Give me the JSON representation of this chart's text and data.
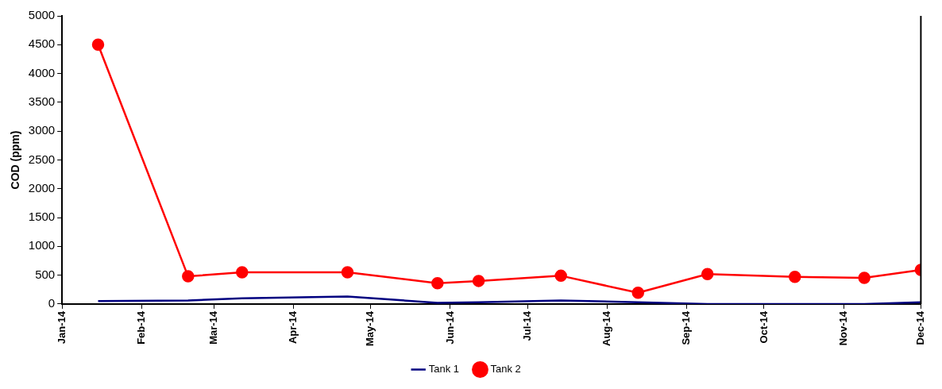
{
  "chart_data": {
    "type": "line",
    "ylabel": "COD (ppm)",
    "x": [
      "2014-01-15",
      "2014-02-19",
      "2014-03-12",
      "2014-04-22",
      "2014-05-27",
      "2014-06-12",
      "2014-07-14",
      "2014-08-13",
      "2014-09-09",
      "2014-10-13",
      "2014-11-09",
      "2014-12-01"
    ],
    "series": [
      {
        "name": "Tank 1",
        "color": "#000080",
        "marker": "none",
        "values": [
          50,
          60,
          100,
          130,
          20,
          30,
          60,
          30,
          0,
          0,
          0,
          30
        ]
      },
      {
        "name": "Tank 2",
        "color": "#ff0000",
        "marker": "circle",
        "values": [
          4500,
          480,
          550,
          550,
          360,
          400,
          490,
          195,
          520,
          470,
          455,
          590
        ]
      }
    ],
    "xlim": [
      "2014-01-01",
      "2014-12-01"
    ],
    "xticks": [
      {
        "value": "2014-01-01",
        "label": "Jan-14"
      },
      {
        "value": "2014-02-01",
        "label": "Feb-14"
      },
      {
        "value": "2014-03-01",
        "label": "Mar-14"
      },
      {
        "value": "2014-04-01",
        "label": "Apr-14"
      },
      {
        "value": "2014-05-01",
        "label": "May-14"
      },
      {
        "value": "2014-06-01",
        "label": "Jun-14"
      },
      {
        "value": "2014-07-01",
        "label": "Jul-14"
      },
      {
        "value": "2014-08-01",
        "label": "Aug-14"
      },
      {
        "value": "2014-09-01",
        "label": "Sep-14"
      },
      {
        "value": "2014-10-01",
        "label": "Oct-14"
      },
      {
        "value": "2014-11-01",
        "label": "Nov-14"
      },
      {
        "value": "2014-12-01",
        "label": "Dec-14"
      }
    ],
    "ylim": [
      0,
      5000
    ],
    "yticks": [
      0,
      500,
      1000,
      1500,
      2000,
      2500,
      3000,
      3500,
      4000,
      4500,
      5000
    ],
    "grid": false,
    "legend": "bottom"
  }
}
